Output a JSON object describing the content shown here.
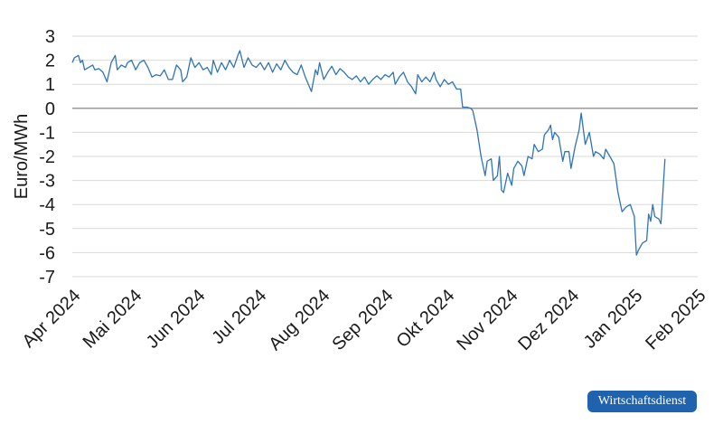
{
  "colors": {
    "line": "#2f74b5",
    "zero_line": "#9a9a9a",
    "grid": "#d9d9d9",
    "badge": "#1f62ad"
  },
  "badge": {
    "label": "Wirtschaftsdienst"
  },
  "chart_data": {
    "type": "line",
    "title": "",
    "xlabel": "",
    "ylabel": "Euro/MWh",
    "ylim": [
      -7,
      3
    ],
    "yticks": [
      3,
      2,
      1,
      0,
      -1,
      -2,
      -3,
      -4,
      -5,
      -6,
      -7
    ],
    "ytick_labels": [
      "3",
      "2",
      "1",
      "0",
      "-1",
      "-2",
      "-3",
      "-4",
      "-5",
      "-6",
      "-7"
    ],
    "xlim": [
      "2024-04-01",
      "2025-02-01"
    ],
    "xticks": [
      "2024-04-01",
      "2024-05-01",
      "2024-06-01",
      "2024-07-01",
      "2024-08-01",
      "2024-09-01",
      "2024-10-01",
      "2024-11-01",
      "2024-12-01",
      "2025-01-01",
      "2025-02-01"
    ],
    "xtick_labels": [
      "Apr 2024",
      "Mai 2024",
      "Jun 2024",
      "Jul 2024",
      "Aug 2024",
      "Sep 2024",
      "Okt 2024",
      "Nov 2024",
      "Dez 2024",
      "Jan 2025",
      "Feb 2025"
    ],
    "grid": true,
    "series": [
      {
        "points": [
          [
            "2024-04-01",
            1.9
          ],
          [
            "2024-04-02",
            2.1
          ],
          [
            "2024-04-04",
            2.2
          ],
          [
            "2024-04-05",
            1.9
          ],
          [
            "2024-04-06",
            2.0
          ],
          [
            "2024-04-07",
            1.6
          ],
          [
            "2024-04-09",
            1.7
          ],
          [
            "2024-04-11",
            1.8
          ],
          [
            "2024-04-12",
            1.6
          ],
          [
            "2024-04-14",
            1.65
          ],
          [
            "2024-04-16",
            1.5
          ],
          [
            "2024-04-18",
            1.1
          ],
          [
            "2024-04-20",
            1.9
          ],
          [
            "2024-04-22",
            2.2
          ],
          [
            "2024-04-23",
            1.6
          ],
          [
            "2024-04-25",
            1.8
          ],
          [
            "2024-04-27",
            1.7
          ],
          [
            "2024-04-28",
            1.9
          ],
          [
            "2024-04-30",
            2.0
          ],
          [
            "2024-05-02",
            1.6
          ],
          [
            "2024-05-04",
            1.9
          ],
          [
            "2024-05-06",
            2.0
          ],
          [
            "2024-05-08",
            1.7
          ],
          [
            "2024-05-10",
            1.3
          ],
          [
            "2024-05-12",
            1.4
          ],
          [
            "2024-05-14",
            1.35
          ],
          [
            "2024-05-16",
            1.6
          ],
          [
            "2024-05-18",
            1.2
          ],
          [
            "2024-05-20",
            1.2
          ],
          [
            "2024-05-22",
            1.8
          ],
          [
            "2024-05-24",
            1.6
          ],
          [
            "2024-05-25",
            1.1
          ],
          [
            "2024-05-27",
            1.3
          ],
          [
            "2024-05-29",
            2.1
          ],
          [
            "2024-05-31",
            1.7
          ],
          [
            "2024-06-02",
            1.9
          ],
          [
            "2024-06-04",
            1.6
          ],
          [
            "2024-06-06",
            1.7
          ],
          [
            "2024-06-08",
            1.4
          ],
          [
            "2024-06-09",
            2.0
          ],
          [
            "2024-06-11",
            1.5
          ],
          [
            "2024-06-13",
            1.9
          ],
          [
            "2024-06-15",
            1.6
          ],
          [
            "2024-06-17",
            2.0
          ],
          [
            "2024-06-19",
            1.7
          ],
          [
            "2024-06-21",
            2.2
          ],
          [
            "2024-06-22",
            2.4
          ],
          [
            "2024-06-24",
            1.7
          ],
          [
            "2024-06-26",
            2.1
          ],
          [
            "2024-06-28",
            1.8
          ],
          [
            "2024-06-30",
            1.7
          ],
          [
            "2024-07-02",
            1.9
          ],
          [
            "2024-07-04",
            1.6
          ],
          [
            "2024-07-06",
            1.9
          ],
          [
            "2024-07-08",
            1.5
          ],
          [
            "2024-07-10",
            1.85
          ],
          [
            "2024-07-12",
            1.6
          ],
          [
            "2024-07-14",
            2.0
          ],
          [
            "2024-07-16",
            1.7
          ],
          [
            "2024-07-18",
            1.5
          ],
          [
            "2024-07-20",
            1.4
          ],
          [
            "2024-07-22",
            1.8
          ],
          [
            "2024-07-24",
            1.3
          ],
          [
            "2024-07-26",
            0.9
          ],
          [
            "2024-07-27",
            0.7
          ],
          [
            "2024-07-29",
            1.6
          ],
          [
            "2024-07-30",
            1.4
          ],
          [
            "2024-07-31",
            1.9
          ],
          [
            "2024-08-02",
            1.2
          ],
          [
            "2024-08-04",
            1.5
          ],
          [
            "2024-08-06",
            1.75
          ],
          [
            "2024-08-08",
            1.4
          ],
          [
            "2024-08-10",
            1.65
          ],
          [
            "2024-08-12",
            1.5
          ],
          [
            "2024-08-14",
            1.3
          ],
          [
            "2024-08-16",
            1.2
          ],
          [
            "2024-08-18",
            1.35
          ],
          [
            "2024-08-20",
            1.1
          ],
          [
            "2024-08-22",
            1.3
          ],
          [
            "2024-08-24",
            1.0
          ],
          [
            "2024-08-26",
            1.2
          ],
          [
            "2024-08-28",
            1.35
          ],
          [
            "2024-08-30",
            1.2
          ],
          [
            "2024-09-01",
            1.4
          ],
          [
            "2024-09-03",
            1.3
          ],
          [
            "2024-09-05",
            1.5
          ],
          [
            "2024-09-06",
            1.0
          ],
          [
            "2024-09-08",
            1.3
          ],
          [
            "2024-09-10",
            1.5
          ],
          [
            "2024-09-12",
            1.1
          ],
          [
            "2024-09-14",
            0.9
          ],
          [
            "2024-09-16",
            0.6
          ],
          [
            "2024-09-17",
            1.4
          ],
          [
            "2024-09-19",
            1.1
          ],
          [
            "2024-09-21",
            1.3
          ],
          [
            "2024-09-23",
            1.1
          ],
          [
            "2024-09-25",
            1.5
          ],
          [
            "2024-09-26",
            1.2
          ],
          [
            "2024-09-28",
            0.9
          ],
          [
            "2024-09-30",
            1.2
          ],
          [
            "2024-10-02",
            1.0
          ],
          [
            "2024-10-04",
            1.1
          ],
          [
            "2024-10-06",
            0.8
          ],
          [
            "2024-10-08",
            0.8
          ],
          [
            "2024-10-09",
            0.05
          ],
          [
            "2024-10-11",
            0.05
          ],
          [
            "2024-10-13",
            0.0
          ],
          [
            "2024-10-14",
            -0.1
          ],
          [
            "2024-10-16",
            -0.9
          ],
          [
            "2024-10-18",
            -2.0
          ],
          [
            "2024-10-20",
            -2.8
          ],
          [
            "2024-10-21",
            -2.2
          ],
          [
            "2024-10-23",
            -2.1
          ],
          [
            "2024-10-24",
            -3.0
          ],
          [
            "2024-10-26",
            -2.8
          ],
          [
            "2024-10-27",
            -2.0
          ],
          [
            "2024-10-28",
            -3.4
          ],
          [
            "2024-10-29",
            -3.5
          ],
          [
            "2024-10-31",
            -2.7
          ],
          [
            "2024-11-02",
            -3.2
          ],
          [
            "2024-11-03",
            -2.5
          ],
          [
            "2024-11-05",
            -2.2
          ],
          [
            "2024-11-07",
            -2.4
          ],
          [
            "2024-11-08",
            -2.8
          ],
          [
            "2024-11-10",
            -2.0
          ],
          [
            "2024-11-12",
            -2.1
          ],
          [
            "2024-11-13",
            -1.5
          ],
          [
            "2024-11-15",
            -1.8
          ],
          [
            "2024-11-17",
            -1.7
          ],
          [
            "2024-11-18",
            -1.1
          ],
          [
            "2024-11-20",
            -0.9
          ],
          [
            "2024-11-21",
            -0.7
          ],
          [
            "2024-11-22",
            -1.3
          ],
          [
            "2024-11-23",
            -1.0
          ],
          [
            "2024-11-25",
            -1.2
          ],
          [
            "2024-11-27",
            -2.2
          ],
          [
            "2024-11-28",
            -1.8
          ],
          [
            "2024-11-30",
            -1.8
          ],
          [
            "2024-12-01",
            -2.5
          ],
          [
            "2024-12-03",
            -1.6
          ],
          [
            "2024-12-05",
            -0.9
          ],
          [
            "2024-12-06",
            -0.2
          ],
          [
            "2024-12-08",
            -1.5
          ],
          [
            "2024-12-10",
            -1.0
          ],
          [
            "2024-12-12",
            -2.0
          ],
          [
            "2024-12-13",
            -1.8
          ],
          [
            "2024-12-15",
            -1.9
          ],
          [
            "2024-12-17",
            -2.1
          ],
          [
            "2024-12-18",
            -1.7
          ],
          [
            "2024-12-20",
            -2.0
          ],
          [
            "2024-12-22",
            -2.3
          ],
          [
            "2024-12-24",
            -3.5
          ],
          [
            "2024-12-26",
            -4.3
          ],
          [
            "2024-12-28",
            -4.1
          ],
          [
            "2024-12-30",
            -4.0
          ],
          [
            "2025-01-01",
            -4.5
          ],
          [
            "2025-01-02",
            -6.1
          ],
          [
            "2025-01-03",
            -5.9
          ],
          [
            "2025-01-05",
            -5.6
          ],
          [
            "2025-01-07",
            -5.5
          ],
          [
            "2025-01-08",
            -4.4
          ],
          [
            "2025-01-09",
            -4.7
          ],
          [
            "2025-01-10",
            -4.0
          ],
          [
            "2025-01-11",
            -4.5
          ],
          [
            "2025-01-13",
            -4.6
          ],
          [
            "2025-01-14",
            -4.8
          ],
          [
            "2025-01-16",
            -2.1
          ]
        ]
      }
    ]
  }
}
